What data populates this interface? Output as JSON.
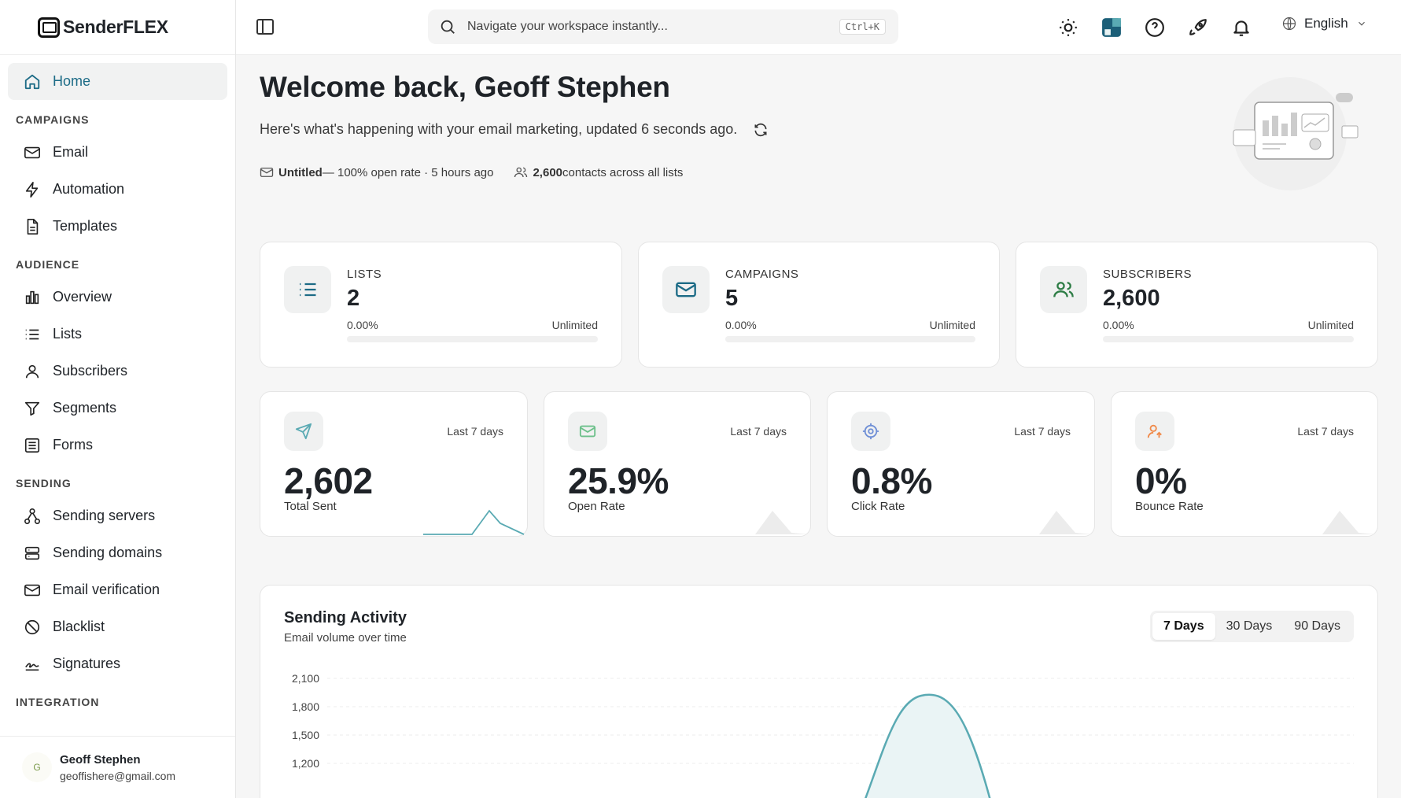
{
  "brand": {
    "name": "SenderFLEX"
  },
  "sidebar": {
    "home": "Home",
    "sections": {
      "campaigns": "CAMPAIGNS",
      "audience": "AUDIENCE",
      "sending": "SENDING",
      "integration": "INTEGRATION"
    },
    "campaigns": [
      "Email",
      "Automation",
      "Templates"
    ],
    "audience": [
      "Overview",
      "Lists",
      "Subscribers",
      "Segments",
      "Forms"
    ],
    "sending": [
      "Sending servers",
      "Sending domains",
      "Email verification",
      "Blacklist",
      "Signatures"
    ]
  },
  "user": {
    "initial": "G",
    "name": "Geoff Stephen",
    "email": "geoffishere@gmail.com"
  },
  "topbar": {
    "search_placeholder": "Navigate your workspace instantly...",
    "shortcut": "Ctrl+K",
    "language": "English",
    "icons": [
      "sun-icon",
      "layout-icon",
      "help-icon",
      "rocket-icon",
      "bell-icon",
      "globe-icon"
    ]
  },
  "welcome": {
    "title": "Welcome back, Geoff Stephen",
    "subtitle": "Here's what's happening with your email marketing, updated 6 seconds ago.",
    "last_campaign": "Untitled",
    "last_campaign_detail": " — 100% open rate · 5 hours ago",
    "contacts_count": "2,600",
    "contacts_text": " contacts across all lists"
  },
  "quota": [
    {
      "label": "LISTS",
      "value": "2",
      "percent": "0.00%",
      "limit": "Unlimited",
      "usage": 0
    },
    {
      "label": "CAMPAIGNS",
      "value": "5",
      "percent": "0.00%",
      "limit": "Unlimited",
      "usage": 0
    },
    {
      "label": "SUBSCRIBERS",
      "value": "2,600",
      "percent": "0.00%",
      "limit": "Unlimited",
      "usage": 0
    }
  ],
  "stats": [
    {
      "period": "Last 7 days",
      "value": "2,602",
      "label": "Total Sent"
    },
    {
      "period": "Last 7 days",
      "value": "25.9%",
      "label": "Open Rate"
    },
    {
      "period": "Last 7 days",
      "value": "0.8%",
      "label": "Click Rate"
    },
    {
      "period": "Last 7 days",
      "value": "0%",
      "label": "Bounce Rate"
    }
  ],
  "activity": {
    "title": "Sending Activity",
    "subtitle": "Email volume over time",
    "ranges": [
      "7 Days",
      "30 Days",
      "90 Days"
    ],
    "active_range": "7 Days"
  },
  "colors": {
    "accent": "#1c6b86",
    "chart": "#5aaab3",
    "chart_fill": "#e6f2f3"
  },
  "chart_data": {
    "type": "area",
    "yticks": [
      "2,100",
      "1,800",
      "1,500",
      "1,200"
    ],
    "ylim": [
      1200,
      2100
    ],
    "grid": true
  }
}
